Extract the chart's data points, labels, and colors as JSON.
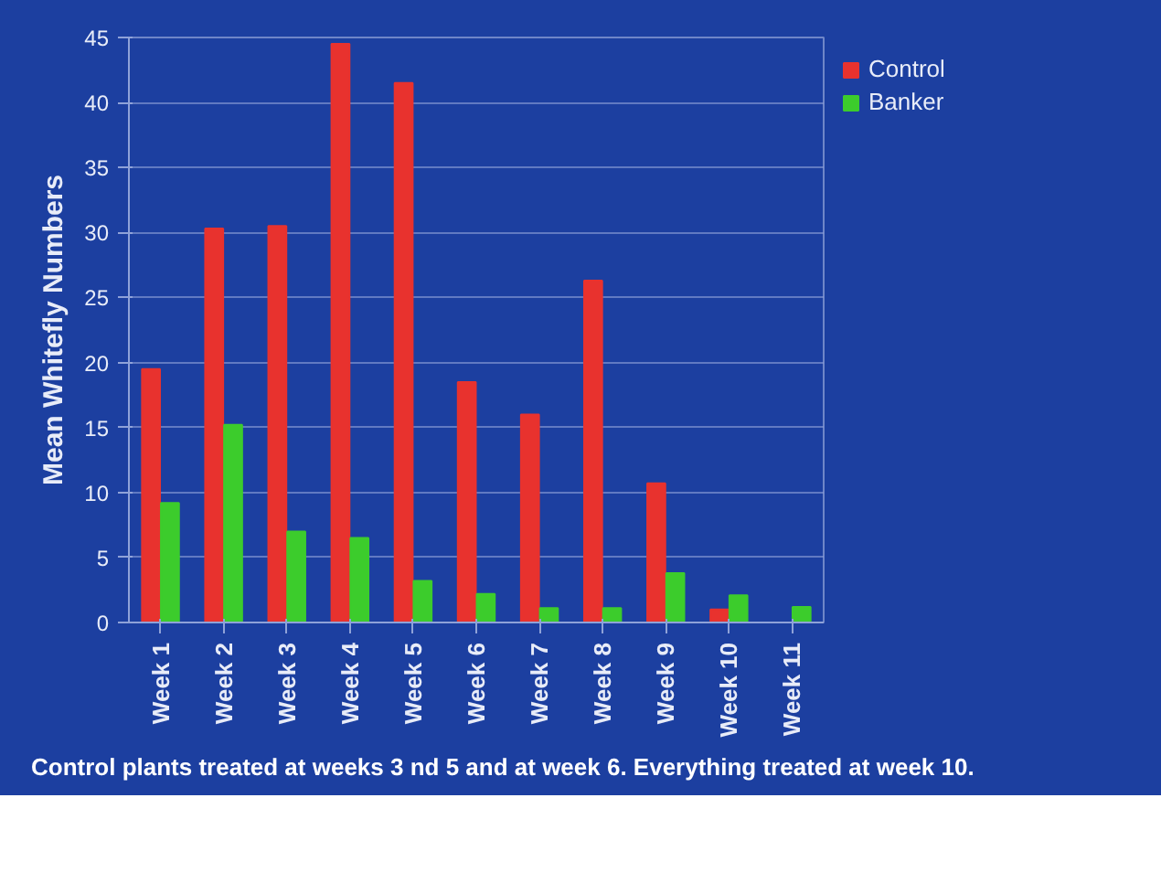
{
  "chart_data": {
    "type": "bar",
    "ylabel": "Mean Whitefly Numbers",
    "categories": [
      "Week 1",
      "Week 2",
      "Week 3",
      "Week 4",
      "Week 5",
      "Week 6",
      "Week 7",
      "Week 8",
      "Week 9",
      "Week 10",
      "Week 11"
    ],
    "series": [
      {
        "name": "Control",
        "color": "#e8322e",
        "values": [
          19.5,
          30.3,
          30.5,
          44.5,
          41.5,
          18.5,
          16,
          26.3,
          10.7,
          1,
          0
        ]
      },
      {
        "name": "Banker",
        "color": "#3ccc2c",
        "values": [
          9.2,
          15.2,
          7,
          6.5,
          3.2,
          2.2,
          1.1,
          1.1,
          3.8,
          2.1,
          1.2
        ]
      }
    ],
    "ylim": [
      0,
      45
    ],
    "yticks": [
      0,
      5,
      10,
      15,
      20,
      25,
      30,
      35,
      40,
      45
    ],
    "grid": "y",
    "legend": "right",
    "annotations": [
      "Control plants treated at weeks 3 nd 5 and at week 6. Everything treated at week 10."
    ]
  }
}
